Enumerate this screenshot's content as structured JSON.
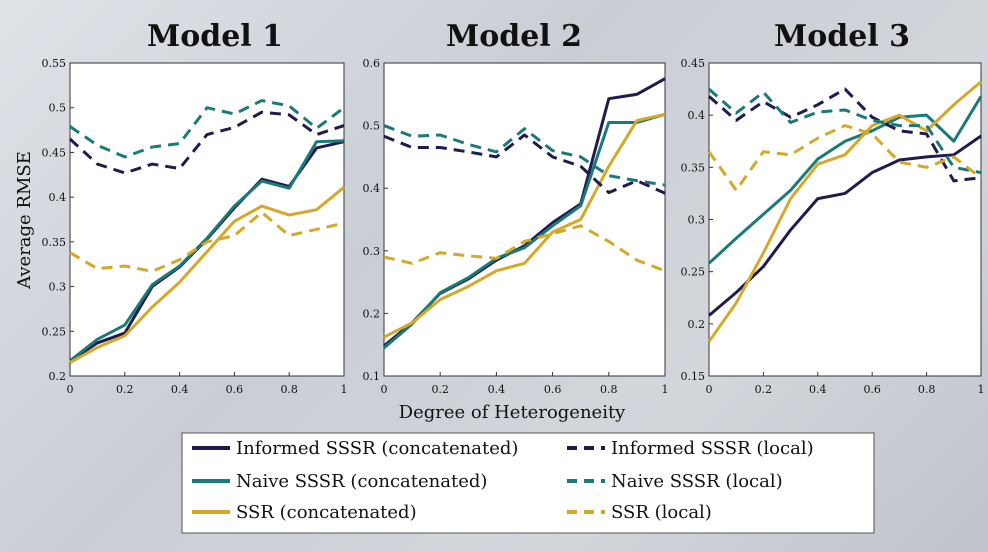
{
  "chart_data": [
    {
      "type": "line",
      "title": "Model 1",
      "xlabel": "",
      "ylabel": "Average RMSE",
      "xlim": [
        0,
        1
      ],
      "ylim": [
        0.2,
        0.55
      ],
      "xticks": [
        "0",
        "0.2",
        "0.4",
        "0.6",
        "0.8",
        "1"
      ],
      "yticks": [
        "0.2",
        "0.25",
        "0.3",
        "0.35",
        "0.4",
        "0.45",
        "0.5",
        "0.55"
      ],
      "x": [
        0,
        0.1,
        0.2,
        0.3,
        0.4,
        0.5,
        0.6,
        0.7,
        0.8,
        0.9,
        1.0
      ],
      "series": [
        {
          "name": "Informed SSSR (concatenated)",
          "values": [
            0.217,
            0.237,
            0.248,
            0.3,
            0.322,
            0.353,
            0.388,
            0.42,
            0.412,
            0.455,
            0.462
          ]
        },
        {
          "name": "Naive SSSR (concatenated)",
          "values": [
            0.217,
            0.241,
            0.257,
            0.302,
            0.323,
            0.354,
            0.39,
            0.418,
            0.41,
            0.462,
            0.463
          ]
        },
        {
          "name": "SSR (concatenated)",
          "values": [
            0.215,
            0.232,
            0.245,
            0.277,
            0.305,
            0.339,
            0.373,
            0.39,
            0.38,
            0.386,
            0.411
          ]
        },
        {
          "name": "Informed SSSR (local)",
          "values": [
            0.465,
            0.437,
            0.427,
            0.437,
            0.432,
            0.47,
            0.478,
            0.495,
            0.492,
            0.47,
            0.48
          ]
        },
        {
          "name": "Naive SSSR (local)",
          "values": [
            0.479,
            0.458,
            0.445,
            0.456,
            0.46,
            0.5,
            0.493,
            0.508,
            0.502,
            0.477,
            0.5
          ]
        },
        {
          "name": "SSR (local)",
          "values": [
            0.338,
            0.32,
            0.323,
            0.317,
            0.33,
            0.35,
            0.357,
            0.383,
            0.357,
            0.364,
            0.371
          ]
        }
      ]
    },
    {
      "type": "line",
      "title": "Model 2",
      "xlabel": "Degree of Heterogeneity",
      "ylabel": "",
      "xlim": [
        0,
        1
      ],
      "ylim": [
        0.1,
        0.6
      ],
      "xticks": [
        "0",
        "0.2",
        "0.4",
        "0.6",
        "0.8",
        "1"
      ],
      "yticks": [
        "0.1",
        "0.2",
        "0.3",
        "0.4",
        "0.5",
        "0.6"
      ],
      "x": [
        0,
        0.1,
        0.2,
        0.3,
        0.4,
        0.5,
        0.6,
        0.7,
        0.8,
        0.9,
        1.0
      ],
      "series": [
        {
          "name": "Informed SSSR (concatenated)",
          "values": [
            0.148,
            0.185,
            0.232,
            0.255,
            0.285,
            0.308,
            0.345,
            0.375,
            0.543,
            0.55,
            0.575
          ]
        },
        {
          "name": "Naive SSSR (concatenated)",
          "values": [
            0.145,
            0.183,
            0.233,
            0.257,
            0.288,
            0.305,
            0.34,
            0.372,
            0.505,
            0.505,
            0.518
          ]
        },
        {
          "name": "SSR (concatenated)",
          "values": [
            0.162,
            0.185,
            0.222,
            0.243,
            0.268,
            0.28,
            0.33,
            0.35,
            0.435,
            0.508,
            0.518
          ]
        },
        {
          "name": "Informed SSSR (local)",
          "values": [
            0.483,
            0.465,
            0.465,
            0.458,
            0.45,
            0.485,
            0.45,
            0.435,
            0.393,
            0.412,
            0.392
          ]
        },
        {
          "name": "Naive SSSR (local)",
          "values": [
            0.5,
            0.483,
            0.485,
            0.47,
            0.458,
            0.495,
            0.46,
            0.45,
            0.42,
            0.412,
            0.405
          ]
        },
        {
          "name": "SSR (local)",
          "values": [
            0.29,
            0.28,
            0.297,
            0.292,
            0.288,
            0.315,
            0.327,
            0.34,
            0.315,
            0.285,
            0.268
          ]
        }
      ]
    },
    {
      "type": "line",
      "title": "Model 3",
      "xlabel": "",
      "ylabel": "",
      "xlim": [
        0,
        1
      ],
      "ylim": [
        0.15,
        0.45
      ],
      "xticks": [
        "0",
        "0.2",
        "0.4",
        "0.6",
        "0.8",
        "1"
      ],
      "yticks": [
        "0.15",
        "0.2",
        "0.25",
        "0.3",
        "0.35",
        "0.4",
        "0.45"
      ],
      "x": [
        0,
        0.1,
        0.2,
        0.3,
        0.4,
        0.5,
        0.6,
        0.7,
        0.8,
        0.9,
        1.0
      ],
      "series": [
        {
          "name": "Informed SSSR (concatenated)",
          "values": [
            0.208,
            0.23,
            0.255,
            0.29,
            0.32,
            0.325,
            0.345,
            0.357,
            0.36,
            0.362,
            0.38
          ]
        },
        {
          "name": "Naive SSSR (concatenated)",
          "values": [
            0.258,
            0.282,
            0.305,
            0.328,
            0.358,
            0.375,
            0.385,
            0.398,
            0.4,
            0.375,
            0.418
          ]
        },
        {
          "name": "SSR (concatenated)",
          "values": [
            0.183,
            0.22,
            0.268,
            0.32,
            0.353,
            0.362,
            0.39,
            0.4,
            0.385,
            0.41,
            0.432
          ]
        },
        {
          "name": "Informed SSSR (local)",
          "values": [
            0.418,
            0.395,
            0.413,
            0.398,
            0.41,
            0.425,
            0.398,
            0.385,
            0.382,
            0.337,
            0.34
          ]
        },
        {
          "name": "Naive SSSR (local)",
          "values": [
            0.425,
            0.402,
            0.422,
            0.393,
            0.403,
            0.405,
            0.395,
            0.39,
            0.39,
            0.35,
            0.345
          ]
        },
        {
          "name": "SSR (local)",
          "values": [
            0.365,
            0.328,
            0.365,
            0.362,
            0.378,
            0.39,
            0.382,
            0.355,
            0.35,
            0.36,
            0.34
          ]
        }
      ]
    }
  ],
  "legend": [
    {
      "label": "Informed SSSR (concatenated)",
      "color": "#1f1b4d",
      "style": "solid"
    },
    {
      "label": "Informed SSSR (local)",
      "color": "#1f1b4d",
      "style": "dashed"
    },
    {
      "label": "Naive SSSR (concatenated)",
      "color": "#1b7a78",
      "style": "solid"
    },
    {
      "label": "Naive SSSR (local)",
      "color": "#1b7a78",
      "style": "dashed"
    },
    {
      "label": "SSR (concatenated)",
      "color": "#d4a829",
      "style": "solid"
    },
    {
      "label": "SSR (local)",
      "color": "#d4a829",
      "style": "dashed"
    }
  ],
  "colors": {
    "informed": "#1f1b4d",
    "naive": "#1b7a78",
    "ssr": "#d4a829"
  }
}
